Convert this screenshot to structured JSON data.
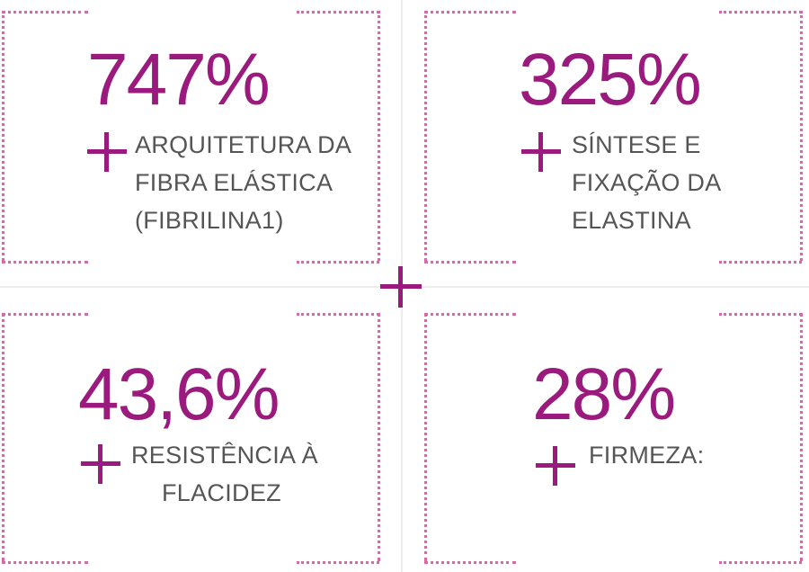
{
  "center_symbol": "+",
  "cards": [
    {
      "value": "747%",
      "lines": [
        "ARQUITETURA DA",
        "FIBRA ELÁSTICA",
        "(FIBRILINA1)"
      ]
    },
    {
      "value": "325%",
      "lines": [
        "SÍNTESE E",
        "FIXAÇÃO DA",
        "ELASTINA"
      ]
    },
    {
      "value": "43,6%",
      "lines": [
        "RESISTÊNCIA À",
        "FLACIDEZ"
      ]
    },
    {
      "value": "28%",
      "lines": [
        "FIRMEZA:"
      ]
    }
  ],
  "colors": {
    "accent": "#9b1a7d",
    "border_dots": "#d46aa8",
    "text": "#555555"
  }
}
